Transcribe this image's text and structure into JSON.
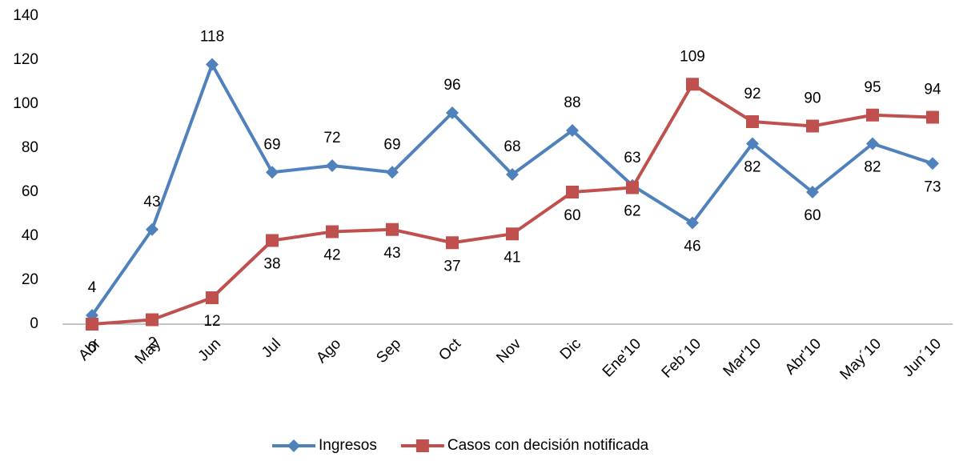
{
  "chart_data": {
    "type": "line",
    "categories": [
      "Abr",
      "May",
      "Jun",
      "Jul",
      "Ago",
      "Sep",
      "Oct",
      "Nov",
      "Dic",
      "Ene'10",
      "Feb´10",
      "Mar'10",
      "Abr'10",
      "May´10",
      "Jun´10"
    ],
    "series": [
      {
        "name": "Ingresos",
        "color": "#4f81bd",
        "marker": "diamond",
        "values": [
          4,
          43,
          118,
          69,
          72,
          69,
          96,
          68,
          88,
          63,
          46,
          82,
          60,
          82,
          73
        ]
      },
      {
        "name": "Casos con decisión notificada",
        "color": "#c0504d",
        "marker": "square",
        "values": [
          0,
          2,
          12,
          38,
          42,
          43,
          37,
          41,
          60,
          62,
          109,
          92,
          90,
          95,
          94
        ]
      }
    ],
    "ylim": [
      0,
      140
    ],
    "yticks": [
      0,
      20,
      40,
      60,
      80,
      100,
      120,
      140
    ],
    "grid": false,
    "legend": "bottom"
  }
}
